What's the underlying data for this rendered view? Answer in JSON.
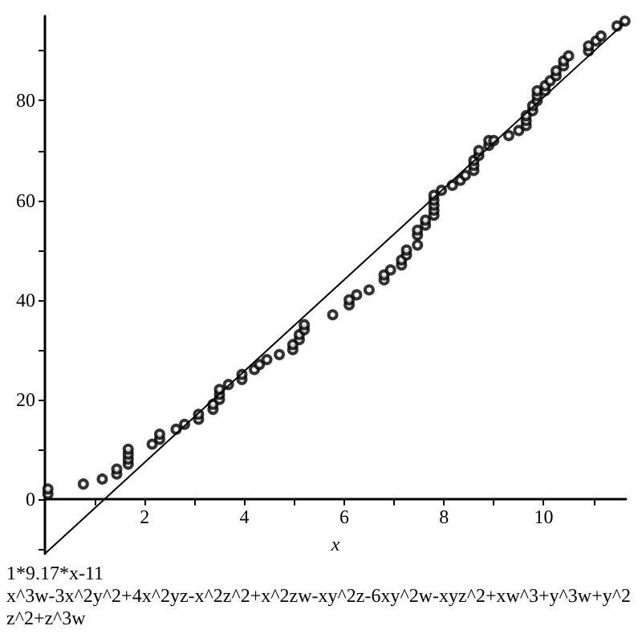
{
  "chart_data": {
    "type": "scatter",
    "xlabel": "x",
    "annotations": [
      "1*9.17*x-11",
      "x^3w-3x^2y^2+4x^2yz-x^2z^2+x^2zw-xy^2z-6xy^2w-xyz^2+xw^3+y^3w+y^2z^2+z^3w"
    ],
    "xlim": [
      0,
      11.65
    ],
    "ylim": [
      -11,
      97
    ],
    "xticks": [
      {
        "value": 1,
        "label": null
      },
      2,
      {
        "value": 3,
        "label": null
      },
      4,
      {
        "value": 5,
        "label": null
      },
      6,
      {
        "value": 7,
        "label": null
      },
      8,
      {
        "value": 9,
        "label": null
      },
      10,
      {
        "value": 11,
        "label": null
      }
    ],
    "yticks": [
      {
        "value": -10,
        "label": null
      },
      0,
      {
        "value": 10,
        "label": null
      },
      20,
      {
        "value": 30,
        "label": null
      },
      40,
      {
        "value": 50,
        "label": null
      },
      60,
      {
        "value": 70,
        "label": null
      },
      80,
      {
        "value": 90,
        "label": null
      }
    ],
    "grid": false,
    "marker": "circle",
    "series": [
      {
        "color": "#000000",
        "x": [
          0.06,
          0.06,
          0.77,
          1.15,
          1.44,
          1.44,
          1.67,
          1.67,
          1.67,
          1.67,
          2.15,
          2.3,
          2.3,
          2.63,
          2.8,
          3.08,
          3.08,
          3.37,
          3.37,
          3.5,
          3.5,
          3.5,
          3.68,
          3.95,
          3.95,
          4.2,
          4.3,
          4.45,
          4.7,
          4.97,
          4.97,
          5.1,
          5.1,
          5.2,
          5.2,
          5.77,
          6.1,
          6.1,
          6.25,
          6.5,
          6.8,
          6.8,
          6.93,
          7.15,
          7.15,
          7.25,
          7.25,
          7.47,
          7.47,
          7.47,
          7.63,
          7.63,
          7.8,
          7.8,
          7.8,
          7.8,
          7.8,
          7.95,
          8.17,
          8.33,
          8.43,
          8.6,
          8.6,
          8.6,
          8.7,
          8.7,
          8.9,
          8.9,
          9.0,
          9.3,
          9.5,
          9.65,
          9.65,
          9.65,
          9.78,
          9.78,
          9.87,
          9.87,
          9.87,
          10.03,
          10.03,
          10.13,
          10.25,
          10.25,
          10.4,
          10.4,
          10.5,
          10.9,
          10.9,
          11.05,
          11.15,
          11.47,
          11.63
        ],
        "values": [
          1,
          2,
          3,
          4,
          5,
          6,
          7,
          8,
          9,
          10,
          11,
          12,
          13,
          14,
          15,
          16,
          17,
          18,
          19,
          20,
          21,
          22,
          23,
          24,
          25,
          26,
          27,
          28,
          29,
          30,
          31,
          32,
          33,
          34,
          35,
          37,
          39,
          40,
          41,
          42,
          44,
          45,
          46,
          47,
          48,
          49,
          50,
          51,
          53,
          54,
          55,
          56,
          57,
          58,
          59,
          60,
          61,
          62,
          63,
          64,
          65,
          66,
          67,
          68,
          69,
          70,
          71,
          72,
          72,
          73,
          74,
          75,
          76,
          77,
          78,
          79,
          80,
          81,
          82,
          82,
          83,
          84,
          85,
          86,
          87,
          88,
          89,
          90,
          91,
          92,
          93,
          95,
          96
        ]
      },
      {
        "type": "line",
        "marker": "none",
        "color": "#000000",
        "x": [
          0,
          11.6
        ],
        "values": [
          -11,
          95.4
        ]
      }
    ]
  }
}
